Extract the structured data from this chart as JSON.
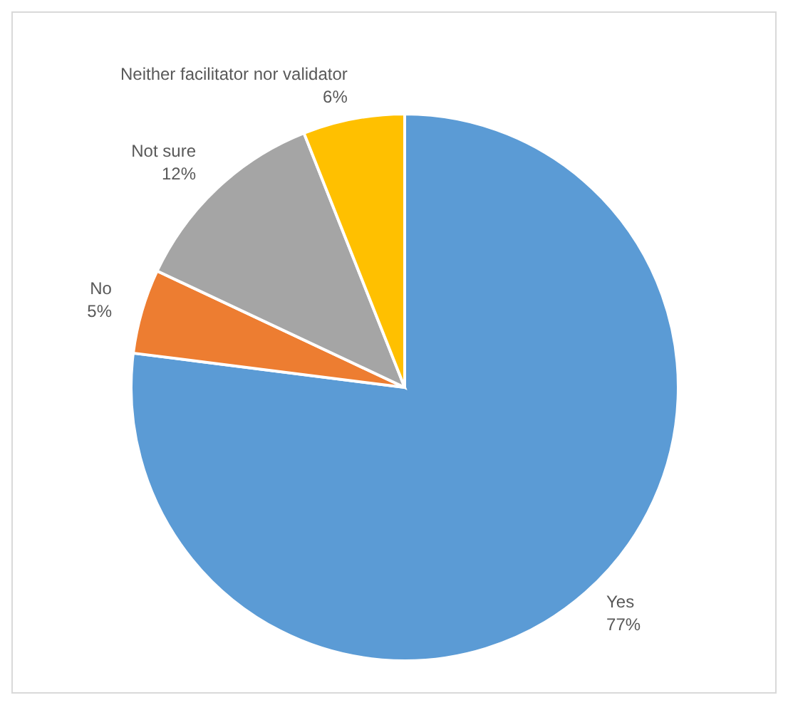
{
  "chart_data": {
    "type": "pie",
    "categories": [
      "Yes",
      "No",
      "Not sure",
      "Neither facilitator nor validator"
    ],
    "values": [
      77,
      5,
      12,
      6
    ],
    "value_labels": [
      "77%",
      "5%",
      "12%",
      "6%"
    ],
    "colors": [
      "#5b9bd5",
      "#ed7d31",
      "#a5a5a5",
      "#ffc000"
    ],
    "legend": false
  }
}
